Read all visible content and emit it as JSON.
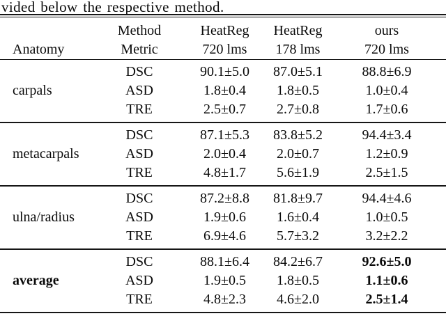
{
  "intro_text": "vided below the respective method.",
  "table": {
    "header": {
      "anatomy": "Anatomy",
      "cols": [
        {
          "line1": "Method",
          "line2": "Metric"
        },
        {
          "line1": "HeatReg",
          "line2": "720 lms"
        },
        {
          "line1": "HeatReg",
          "line2": "178 lms"
        },
        {
          "line1": "ours",
          "line2": "720 lms"
        }
      ]
    },
    "sections": [
      {
        "anatomy": "carpals",
        "rows": [
          {
            "metric": "DSC",
            "values": [
              "90.1±5.0",
              "87.0±5.1",
              "88.8±6.9"
            ]
          },
          {
            "metric": "ASD",
            "values": [
              "1.8±0.4",
              "1.8±0.5",
              "1.0±0.4"
            ]
          },
          {
            "metric": "TRE",
            "values": [
              "2.5±0.7",
              "2.7±0.8",
              "1.7±0.6"
            ]
          }
        ]
      },
      {
        "anatomy": "metacarpals",
        "rows": [
          {
            "metric": "DSC",
            "values": [
              "87.1±5.3",
              "83.8±5.2",
              "94.4±3.4"
            ]
          },
          {
            "metric": "ASD",
            "values": [
              "2.0±0.4",
              "2.0±0.7",
              "1.2±0.9"
            ]
          },
          {
            "metric": "TRE",
            "values": [
              "4.8±1.7",
              "5.6±1.9",
              "2.5±1.5"
            ]
          }
        ]
      },
      {
        "anatomy": "ulna/radius",
        "rows": [
          {
            "metric": "DSC",
            "values": [
              "87.2±8.8",
              "81.8±9.7",
              "94.4±4.6"
            ]
          },
          {
            "metric": "ASD",
            "values": [
              "1.9±0.6",
              "1.6±0.4",
              "1.0±0.5"
            ]
          },
          {
            "metric": "TRE",
            "values": [
              "6.9±4.6",
              "5.7±3.2",
              "3.2±2.2"
            ]
          }
        ]
      },
      {
        "anatomy": "average",
        "rows": [
          {
            "metric": "DSC",
            "values": [
              "88.1±6.4",
              "84.2±6.7",
              "92.6±5.0"
            ]
          },
          {
            "metric": "ASD",
            "values": [
              "1.9±0.5",
              "1.8±0.5",
              "1.1±0.6"
            ]
          },
          {
            "metric": "TRE",
            "values": [
              "4.8±2.3",
              "4.6±2.0",
              "2.5±1.4"
            ]
          }
        ]
      }
    ]
  },
  "colors": {
    "rule": "#161616",
    "text": "#0a0a0a",
    "background": "#ffffff"
  }
}
